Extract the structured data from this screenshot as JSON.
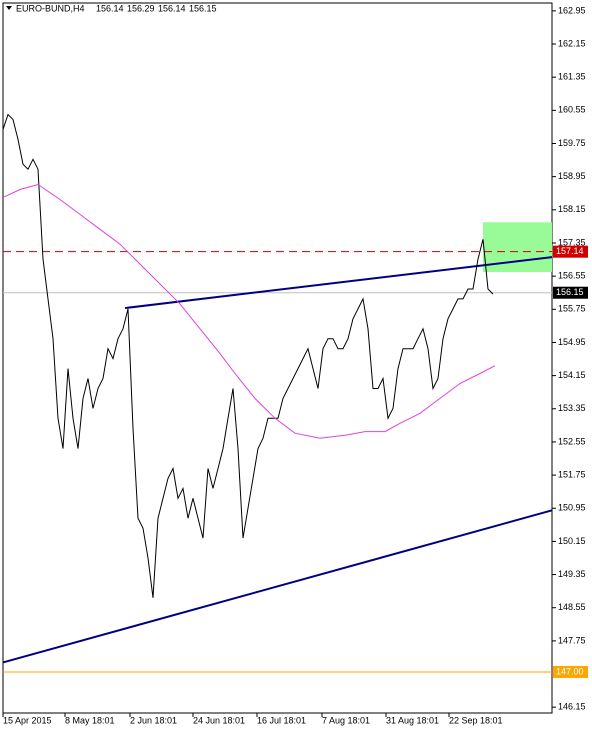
{
  "chart_data": {
    "type": "line",
    "title": "EURO-BUND,H4",
    "quote": [
      156.14,
      156.29,
      156.14,
      156.15
    ],
    "xlim": [
      0,
      109.8
    ],
    "ylim": [
      146.01,
      163.14
    ],
    "yticks": [
      162.95,
      162.15,
      161.35,
      160.55,
      159.75,
      158.95,
      158.15,
      157.35,
      156.55,
      155.75,
      154.95,
      154.15,
      153.35,
      152.55,
      151.75,
      150.95,
      150.15,
      149.35,
      148.55,
      147.75,
      146.15
    ],
    "xticks": [
      {
        "value": 0,
        "label": "15 Apr 2015"
      },
      {
        "value": 12.4,
        "label": "8 May 18:01"
      },
      {
        "value": 25.4,
        "label": "2 Jun 18:01"
      },
      {
        "value": 38,
        "label": "24 Jun 18:01"
      },
      {
        "value": 50.8,
        "label": "16 Jul 18:01"
      },
      {
        "value": 63.8,
        "label": "7 Aug 18:01"
      },
      {
        "value": 76.6,
        "label": "31 Aug 18:01"
      },
      {
        "value": 89.2,
        "label": "22 Sep 18:01"
      }
    ],
    "series": [
      {
        "color": "#000000",
        "values": [
          160.09,
          160.45,
          160.33,
          159.85,
          159.25,
          159.13,
          159.37,
          159.13,
          156.96,
          156.0,
          155.04,
          153.12,
          152.39,
          154.32,
          153.12,
          152.39,
          153.6,
          154.08,
          153.36,
          153.84,
          154.08,
          154.8,
          154.56,
          155.04,
          155.28,
          155.76,
          152.88,
          150.71,
          150.47,
          149.75,
          148.79,
          150.71,
          151.19,
          151.67,
          151.91,
          151.19,
          151.43,
          150.71,
          151.19,
          150.71,
          150.23,
          151.91,
          151.43,
          151.91,
          152.39,
          153.12,
          153.84,
          152.39,
          150.23,
          150.95,
          151.67,
          152.39,
          152.64,
          153.12,
          153.12,
          153.12,
          153.6,
          153.84,
          154.08,
          154.32,
          154.56,
          154.8,
          154.32,
          153.84,
          154.8,
          155.04,
          155.04,
          154.8,
          154.8,
          155.04,
          155.52,
          155.76,
          156.0,
          155.28,
          153.84,
          153.84,
          154.08,
          153.12,
          153.36,
          154.32,
          154.8,
          154.8,
          154.8,
          155.04,
          155.28,
          154.8,
          153.84,
          154.08,
          155.04,
          155.52,
          155.76,
          156.0,
          156.0,
          156.24,
          156.24,
          156.96,
          157.44,
          156.24,
          156.12
        ]
      },
      {
        "color": "#e040e0",
        "x": [
          0,
          3.4,
          7,
          11.4,
          15.4,
          19.4,
          23.4,
          27.4,
          31.4,
          35.4,
          39.4,
          43.4,
          46.4,
          50.4,
          54.4,
          58.4,
          63.4,
          68.4,
          72.4,
          76.4,
          79.4,
          83.4,
          87.4,
          91.4,
          95.4,
          98.4
        ],
        "values": [
          158.45,
          158.64,
          158.76,
          158.4,
          158.04,
          157.68,
          157.32,
          156.84,
          156.36,
          155.88,
          155.28,
          154.68,
          154.2,
          153.6,
          153.12,
          152.76,
          152.64,
          152.71,
          152.8,
          152.8,
          153.0,
          153.24,
          153.6,
          153.96,
          154.2,
          154.39
        ]
      }
    ],
    "trendlines": [
      {
        "color": "#000080",
        "x": [
          24.4,
          109.8
        ],
        "values": [
          155.78,
          157.01
        ]
      },
      {
        "color": "#000080",
        "x": [
          0,
          109.8
        ],
        "values": [
          147.23,
          150.9
        ]
      }
    ],
    "zone": {
      "color": "#98fb98",
      "x": [
        96,
        109.8
      ],
      "values": [
        157.85,
        156.65
      ]
    },
    "levels": [
      {
        "value": 157.14,
        "color": "#d00000",
        "dashed": true
      },
      {
        "value": 156.15,
        "color": "#c0c0c0",
        "dashed": false,
        "tag": "#000000"
      },
      {
        "value": 147,
        "label": "147.00",
        "color": "#ffa500",
        "dashed": false
      }
    ]
  }
}
